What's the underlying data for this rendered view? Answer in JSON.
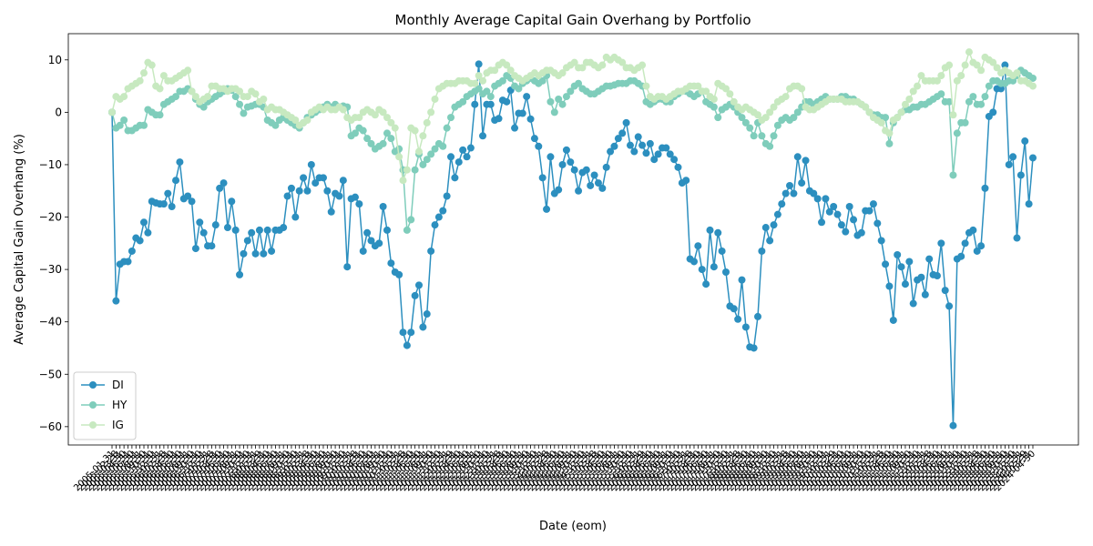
{
  "chart_data": {
    "type": "line",
    "title": "Monthly Average Capital Gain Overhang by Portfolio",
    "xlabel": "Date (eom)",
    "ylabel": "Average Capital Gain Overhang (%)",
    "legend": "lower left",
    "grid": false,
    "ylim": [
      -63.5,
      15
    ],
    "yticks": [
      {
        "value": -60,
        "label": "−60"
      },
      {
        "value": -50,
        "label": "−50"
      },
      {
        "value": -40,
        "label": "−40"
      },
      {
        "value": -30,
        "label": "−30"
      },
      {
        "value": -20,
        "label": "−20"
      },
      {
        "value": -10,
        "label": "−10"
      },
      0,
      10
    ],
    "categories": [
      "2005-01-31",
      "2005-02-28",
      "2005-03-31",
      "2005-04-30",
      "2005-05-31",
      "2005-06-30",
      "2005-07-31",
      "2005-08-31",
      "2005-09-30",
      "2005-10-31",
      "2005-11-30",
      "2005-12-31",
      "2006-01-31",
      "2006-02-28",
      "2006-03-31",
      "2006-04-30",
      "2006-05-31",
      "2006-06-30",
      "2006-07-31",
      "2006-08-31",
      "2006-09-30",
      "2006-10-31",
      "2006-11-30",
      "2006-12-31",
      "2007-01-31",
      "2007-02-28",
      "2007-03-31",
      "2007-04-30",
      "2007-05-31",
      "2007-06-30",
      "2007-07-31",
      "2007-08-31",
      "2007-09-30",
      "2007-10-31",
      "2007-11-30",
      "2007-12-31",
      "2008-01-31",
      "2008-02-29",
      "2008-03-31",
      "2008-04-30",
      "2008-05-31",
      "2008-06-30",
      "2008-07-31",
      "2008-08-31",
      "2008-09-30",
      "2008-10-31",
      "2008-11-30",
      "2008-12-31",
      "2009-01-31",
      "2009-02-28",
      "2009-03-31",
      "2009-04-30",
      "2009-05-31",
      "2009-06-30",
      "2009-07-31",
      "2009-08-31",
      "2009-09-30",
      "2009-10-31",
      "2009-11-30",
      "2009-12-31",
      "2010-01-31",
      "2010-02-28",
      "2010-03-31",
      "2010-04-30",
      "2010-05-31",
      "2010-06-30",
      "2010-07-31",
      "2010-08-31",
      "2010-09-30",
      "2010-10-31",
      "2010-11-30",
      "2010-12-31",
      "2011-01-31",
      "2011-02-28",
      "2011-03-31",
      "2011-04-30",
      "2011-05-31",
      "2011-06-30",
      "2011-07-31",
      "2011-08-31",
      "2011-09-30",
      "2011-10-31",
      "2011-11-30",
      "2011-12-31",
      "2012-01-31",
      "2012-02-29",
      "2012-03-31",
      "2012-04-30",
      "2012-05-31",
      "2012-06-30",
      "2012-07-31",
      "2012-08-31",
      "2012-09-30",
      "2012-10-31",
      "2012-11-30",
      "2012-12-31",
      "2013-01-31",
      "2013-02-28",
      "2013-03-31",
      "2013-04-30",
      "2013-05-31",
      "2013-06-30",
      "2013-07-31",
      "2013-08-31",
      "2013-09-30",
      "2013-10-31",
      "2013-11-30",
      "2013-12-31",
      "2014-01-31",
      "2014-02-28",
      "2014-03-31",
      "2014-04-30",
      "2014-05-31",
      "2014-06-30",
      "2014-07-31",
      "2014-08-31",
      "2014-09-30",
      "2014-10-31",
      "2014-11-30",
      "2014-12-31",
      "2015-01-31",
      "2015-02-28",
      "2015-03-31",
      "2015-04-30",
      "2015-05-31",
      "2015-06-30",
      "2015-07-31",
      "2015-08-31",
      "2015-09-30",
      "2015-10-31",
      "2015-11-30",
      "2015-12-31",
      "2016-01-31",
      "2016-02-29",
      "2016-03-31",
      "2016-04-30",
      "2016-05-31",
      "2016-06-30",
      "2016-07-31",
      "2016-08-31",
      "2016-09-30",
      "2016-10-31",
      "2016-11-30",
      "2016-12-31",
      "2017-01-31",
      "2017-02-28",
      "2017-03-31",
      "2017-04-30",
      "2017-05-31",
      "2017-06-30",
      "2017-07-31",
      "2017-08-31",
      "2017-09-30",
      "2017-10-31",
      "2017-11-30",
      "2017-12-31",
      "2018-01-31",
      "2018-02-28",
      "2018-03-31",
      "2018-04-30",
      "2018-05-31",
      "2018-06-30",
      "2018-07-31",
      "2018-08-31",
      "2018-09-30",
      "2018-10-31",
      "2018-11-30",
      "2018-12-31",
      "2019-01-31",
      "2019-02-28",
      "2019-03-31",
      "2019-04-30",
      "2019-05-31",
      "2019-06-30",
      "2019-07-31",
      "2019-08-31",
      "2019-09-30",
      "2019-10-31",
      "2019-11-30",
      "2019-12-31",
      "2020-01-31",
      "2020-02-29",
      "2020-03-31",
      "2020-04-30",
      "2020-05-31",
      "2020-06-30",
      "2020-07-31",
      "2020-08-31",
      "2020-09-30",
      "2020-10-31",
      "2020-11-30",
      "2020-12-31",
      "2021-01-31",
      "2021-02-28",
      "2021-03-31",
      "2021-04-30",
      "2021-05-31",
      "2021-06-30",
      "2021-07-31",
      "2021-08-31",
      "2021-09-30",
      "2021-10-31",
      "2021-11-30",
      "2021-12-31",
      "2022-01-31",
      "2022-02-28",
      "2022-03-31",
      "2022-04-30",
      "2022-05-31",
      "2022-06-30",
      "2022-07-31",
      "2022-08-31",
      "2022-09-30",
      "2022-10-31",
      "2022-11-30",
      "2022-12-31",
      "2023-01-31",
      "2023-02-28",
      "2023-03-31",
      "2023-04-30",
      "2023-05-31",
      "2023-06-30",
      "2023-07-31",
      "2023-08-31",
      "2023-09-30",
      "2023-10-31",
      "2023-11-30",
      "2023-12-31",
      "2024-01-31",
      "2024-02-29",
      "2024-03-31",
      "2024-04-30"
    ],
    "series": [
      {
        "name": "DI",
        "color": "#2c8fbf",
        "values": [
          0,
          -36,
          -29,
          -28.5,
          -28.5,
          -26.5,
          -24,
          -24.5,
          -21,
          -23,
          -17,
          -17.3,
          -17.5,
          -17.5,
          -15.5,
          -18,
          -13,
          -9.5,
          -16.5,
          -16,
          -17,
          -26,
          -21,
          -23,
          -25.5,
          -25.5,
          -21.5,
          -14.5,
          -13.5,
          -22,
          -17,
          -22.5,
          -31,
          -27,
          -24.5,
          -23,
          -27,
          -22.5,
          -27,
          -22.5,
          -26.5,
          -22.5,
          -22.5,
          -22,
          -16,
          -14.5,
          -20,
          -15,
          -12.5,
          -15,
          -10,
          -13.5,
          -12.5,
          -12.5,
          -15,
          -19,
          -15.5,
          -16,
          -13,
          -29.5,
          -16.5,
          -16.2,
          -17.5,
          -26.5,
          -23,
          -24.5,
          -25.5,
          -25,
          -18,
          -22.5,
          -28.8,
          -30.5,
          -31,
          -42,
          -44.5,
          -42,
          -35,
          -33,
          -41,
          -38.5,
          -26.5,
          -21.5,
          -20,
          -18.8,
          -16,
          -8.5,
          -12.5,
          -9.5,
          -7.2,
          -8.5,
          -6.8,
          1.5,
          9.2,
          -4.5,
          1.5,
          1.5,
          -1.5,
          -1.2,
          2.3,
          2,
          4.2,
          -3,
          -0.2,
          -0.2,
          3,
          -1.3,
          -5,
          -6.5,
          -12.5,
          -18.5,
          -8.5,
          -15.5,
          -14.8,
          -10,
          -7.2,
          -9.5,
          -11,
          -15,
          -11.5,
          -11,
          -14,
          -12,
          -13.5,
          -14.5,
          -10.5,
          -7.5,
          -6.5,
          -5,
          -4,
          -2,
          -6.3,
          -7.5,
          -4.7,
          -6.3,
          -7.8,
          -6,
          -9,
          -8,
          -6.8,
          -6.8,
          -8,
          -9,
          -10.5,
          -13.5,
          -13,
          -28,
          -28.5,
          -25.5,
          -30,
          -32.8,
          -22.5,
          -29.5,
          -23,
          -26.5,
          -30.5,
          -37,
          -37.5,
          -39.5,
          -32,
          -41,
          -44.8,
          -45,
          -39,
          -26.5,
          -22,
          -24.5,
          -21.5,
          -19.5,
          -17.5,
          -15.5,
          -14,
          -15.5,
          -8.5,
          -13.5,
          -9.2,
          -15,
          -15.5,
          -16.5,
          -21,
          -16.5,
          -19,
          -18,
          -19.5,
          -21.5,
          -22.8,
          -18,
          -20.5,
          -23.5,
          -23,
          -18.8,
          -18.8,
          -17.5,
          -21.2,
          -24.5,
          -29,
          -33.2,
          -39.7,
          -27.2,
          -29.5,
          -32.8,
          -28.5,
          -36.5,
          -32,
          -31.5,
          -34.8,
          -28,
          -31,
          -31.2,
          -25,
          -34,
          -37,
          -59.8,
          -28,
          -27.5,
          -25,
          -23,
          -22.5,
          -26.5,
          -25.5,
          -14.5,
          -0.8,
          0,
          4.5,
          4.5,
          9,
          -10,
          -8.5,
          -24,
          -12,
          -5.5,
          -17.5,
          -8.7
        ]
      },
      {
        "name": "HY",
        "color": "#7fcdbb",
        "values": [
          0,
          -3,
          -2.5,
          -1.5,
          -3.5,
          -3.5,
          -3,
          -2.5,
          -2.5,
          0.5,
          0,
          -0.5,
          -0.5,
          1.5,
          2,
          2.5,
          3,
          4,
          4,
          4.5,
          4,
          2.5,
          1.5,
          1,
          2,
          2.5,
          3,
          3.5,
          4,
          4.5,
          4.2,
          3,
          1.5,
          -0.2,
          1,
          1.2,
          1.5,
          1.5,
          1,
          -1.5,
          -2,
          -2.5,
          -1.5,
          -1,
          -1.5,
          -2,
          -2.5,
          -3,
          -2,
          -1,
          -0.5,
          0,
          0.5,
          1,
          1.5,
          1,
          1.5,
          1,
          1.2,
          1,
          -4.5,
          -4,
          -3,
          -3.5,
          -5,
          -6,
          -7,
          -6.5,
          -6,
          -4,
          -5,
          -7.5,
          -7,
          -11,
          -22.5,
          -20.5,
          -11,
          -8,
          -10,
          -9,
          -8,
          -7,
          -6,
          -6.5,
          -3,
          -1,
          1,
          1.5,
          2,
          3,
          3.5,
          4,
          4.5,
          3.5,
          4,
          3,
          5,
          5.5,
          6,
          7,
          6.5,
          5,
          4.5,
          5.5,
          6,
          6.5,
          6,
          5.5,
          6,
          7,
          2,
          0,
          2.5,
          1.5,
          3,
          4,
          5,
          5.5,
          4.5,
          4,
          3.5,
          3.5,
          4,
          4.5,
          5,
          5,
          5.2,
          5.5,
          5.5,
          5.5,
          6,
          6,
          5.5,
          5,
          2,
          1.5,
          2,
          2.5,
          2.5,
          2,
          2,
          3,
          3.5,
          4,
          4,
          3.5,
          3,
          3.5,
          4,
          2,
          1.5,
          1,
          -1,
          0.5,
          1,
          1.5,
          1,
          0,
          -1,
          -2,
          -3,
          -4.5,
          -2,
          -4.5,
          -6,
          -6.5,
          -4.5,
          -2.5,
          -1.5,
          -1,
          -1.5,
          -1,
          0,
          1,
          2,
          2,
          1.5,
          2,
          2.5,
          3,
          2.5,
          2.5,
          2.5,
          3,
          3,
          2.5,
          2.5,
          2,
          1.5,
          1,
          0,
          -0.5,
          -0.5,
          -1,
          -1,
          -6,
          -2,
          -1,
          0,
          0.5,
          0.5,
          1,
          1,
          1.5,
          1.5,
          2,
          2.5,
          3,
          3.5,
          2,
          2,
          -12,
          -4,
          -2,
          -2,
          2,
          3,
          1.5,
          1.5,
          3,
          5,
          6,
          6,
          5.5,
          5.5,
          6,
          6,
          7,
          8,
          7.5,
          7,
          6.5
        ]
      },
      {
        "name": "IG",
        "color": "#c7e9c0",
        "values": [
          0,
          3,
          2.5,
          3,
          4.5,
          5,
          5.5,
          6,
          7.5,
          9.5,
          9,
          5,
          4.5,
          7,
          6,
          6,
          6.5,
          7,
          7.5,
          8,
          4,
          3,
          2,
          2.5,
          3,
          5,
          5,
          4.5,
          4.5,
          4,
          4.5,
          4.5,
          4,
          3,
          3,
          4,
          3.5,
          2,
          2.5,
          0.5,
          1,
          0.5,
          0.5,
          0,
          -0.5,
          -1,
          -1.5,
          -2.5,
          -2,
          -1.5,
          0,
          0.5,
          1,
          0.5,
          1,
          0.5,
          0.5,
          1,
          0.5,
          -1,
          -1.5,
          -1,
          -1,
          0,
          0.5,
          0,
          -0.5,
          0.5,
          0,
          -1,
          -2,
          -3,
          -8.5,
          -13,
          -11,
          -3,
          -3.5,
          -7.5,
          -4.5,
          -2,
          0,
          2.5,
          4.5,
          5,
          5.5,
          5.5,
          5.5,
          6,
          6,
          6,
          5.5,
          5.5,
          7,
          6,
          7.5,
          8,
          8,
          9,
          9.5,
          9,
          8,
          7,
          6.5,
          6,
          6.5,
          7,
          7.5,
          7,
          7.5,
          8,
          8,
          7.5,
          7,
          7.5,
          8.5,
          9,
          9.5,
          8.5,
          8.5,
          9.5,
          9.5,
          9,
          8.5,
          9,
          10.5,
          10,
          10.5,
          10,
          9.5,
          8.5,
          8.5,
          8,
          8.5,
          9,
          5,
          3,
          2.5,
          3,
          3,
          2.5,
          3,
          3.5,
          4,
          4,
          4.5,
          5,
          5,
          5,
          4,
          4,
          3,
          2.5,
          5.5,
          5,
          4.5,
          3.5,
          2,
          1,
          0.5,
          1,
          0.5,
          0,
          -0.5,
          -1.5,
          -1,
          0,
          1,
          2,
          2.5,
          3,
          4.5,
          5,
          5,
          4.5,
          1,
          0.5,
          0.5,
          1,
          1.5,
          2,
          2.5,
          2.5,
          2.5,
          2.5,
          2,
          2,
          2,
          2,
          1.5,
          1,
          0,
          -1,
          -1.5,
          -2,
          -3.5,
          -4,
          -1.5,
          -1,
          0,
          1.5,
          2.5,
          4,
          5,
          7,
          6,
          6,
          6,
          6,
          7,
          8.5,
          9,
          -0.5,
          6,
          7,
          9,
          11.5,
          9.5,
          9,
          8,
          10.5,
          10,
          9.5,
          8.5,
          7.5,
          8,
          7.5,
          7,
          7.5,
          6,
          6,
          5.5,
          5
        ]
      }
    ]
  }
}
